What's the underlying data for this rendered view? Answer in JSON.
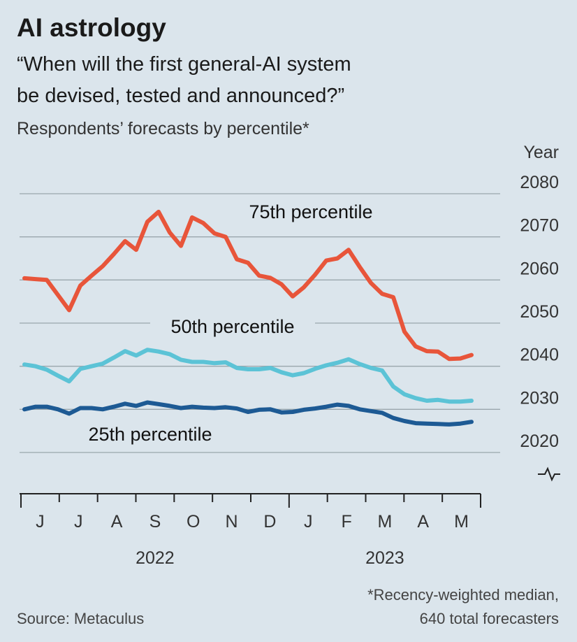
{
  "chart_data": {
    "type": "line",
    "title": "AI astrology",
    "subtitle": [
      "“When will the first general-AI system",
      "be devised, tested and announced?”"
    ],
    "description": "Respondents’ forecasts by percentile*",
    "y_label": "Year",
    "months": [
      "J",
      "J",
      "A",
      "S",
      "O",
      "N",
      "D",
      "J",
      "F",
      "M",
      "A",
      "M"
    ],
    "years": [
      "2022",
      "2023"
    ],
    "ylim": [
      2020,
      2080
    ],
    "yticks": [
      2020,
      2030,
      2040,
      2050,
      2060,
      2070,
      2080
    ],
    "grid": true,
    "series": [
      {
        "name": "75th percentile",
        "color": "#e8553a",
        "values": [
          2060.4,
          2060.2,
          2060,
          2056.5,
          2053,
          2058.7,
          2061,
          2063.2,
          2066,
          2069,
          2067,
          2073.5,
          2075.8,
          2071,
          2067.9,
          2074.5,
          2073.2,
          2070.8,
          2070,
          2064.8,
          2064,
          2061,
          2060.5,
          2059,
          2056.2,
          2058.3,
          2061.2,
          2064.5,
          2065,
          2067,
          2063,
          2059.3,
          2056.8,
          2056,
          2048,
          2044.6,
          2043.5,
          2043.4,
          2041.7,
          2041.8,
          2042.6
        ]
      },
      {
        "name": "50th percentile",
        "color": "#5cc3d6",
        "values": [
          2040.4,
          2040,
          2039.2,
          2037.8,
          2036.5,
          2039.4,
          2040,
          2040.6,
          2042,
          2043.5,
          2042.5,
          2043.8,
          2043.4,
          2042.8,
          2041.5,
          2041,
          2041,
          2040.7,
          2040.9,
          2039.6,
          2039.3,
          2039.3,
          2039.6,
          2038.6,
          2037.9,
          2038.4,
          2039.4,
          2040.2,
          2040.8,
          2041.6,
          2040.5,
          2039.6,
          2039,
          2035.3,
          2033.5,
          2032.6,
          2032,
          2032.2,
          2031.8,
          2031.8,
          2032
        ]
      },
      {
        "name": "25th percentile",
        "color": "#1d5a94",
        "values": [
          2030,
          2030.6,
          2030.6,
          2030,
          2029,
          2030.3,
          2030.3,
          2030,
          2030.6,
          2031.3,
          2030.8,
          2031.6,
          2031.2,
          2030.8,
          2030.3,
          2030.6,
          2030.4,
          2030.3,
          2030.5,
          2030.2,
          2029.4,
          2029.9,
          2030,
          2029.3,
          2029.4,
          2029.9,
          2030.2,
          2030.6,
          2031.1,
          2030.8,
          2030,
          2029.6,
          2029.2,
          2028,
          2027.3,
          2026.8,
          2026.7,
          2026.6,
          2026.5,
          2026.7,
          2027.1
        ]
      }
    ],
    "source": "Source: Metaculus",
    "footnote": [
      "*Recency-weighted median,",
      "640 total forecasters"
    ]
  }
}
